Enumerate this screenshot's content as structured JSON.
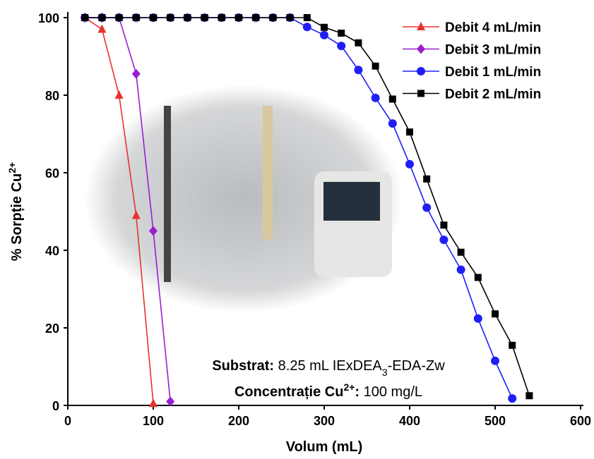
{
  "chart_data": {
    "type": "line",
    "x_label": "Volum (mL)",
    "y_label": [
      {
        "text": "% Sorpție Cu",
        "style": "bold"
      },
      {
        "text": "2+",
        "style": "sup"
      }
    ],
    "xlim": [
      0,
      600
    ],
    "xticks": [
      0,
      100,
      200,
      300,
      400,
      500,
      600
    ],
    "ylim": [
      0,
      100
    ],
    "yticks": [
      0,
      20,
      40,
      60,
      80,
      100
    ],
    "legend": "upper right",
    "series": [
      {
        "name": "Debit 4 mL/min",
        "color": "#e8322e",
        "marker": "triangle",
        "x": [
          20,
          40,
          60,
          80,
          100
        ],
        "values": [
          100,
          97,
          80,
          49,
          0.5
        ]
      },
      {
        "name": "Debit 3 mL/min",
        "color": "#9a1ed0",
        "marker": "diamond",
        "x": [
          20,
          40,
          60,
          80,
          100,
          120
        ],
        "values": [
          100,
          100,
          100,
          85.5,
          45,
          1
        ]
      },
      {
        "name": "Debit 1 mL/min",
        "color": "#1f1ff5",
        "marker": "circle",
        "x": [
          20,
          40,
          60,
          80,
          100,
          120,
          140,
          160,
          180,
          200,
          220,
          240,
          260,
          280,
          300,
          320,
          340,
          360,
          380,
          400,
          420,
          440,
          460,
          480,
          500,
          520
        ],
        "values": [
          100,
          100,
          100,
          100,
          100,
          100,
          100,
          100,
          100,
          100,
          100,
          100,
          100,
          97.6,
          95.5,
          92.7,
          86.5,
          79.3,
          72.7,
          62.2,
          51,
          42.7,
          35,
          22.4,
          11.5,
          1.8
        ]
      },
      {
        "name": "Debit 2 mL/min",
        "color": "#000000",
        "marker": "square",
        "x": [
          20,
          40,
          60,
          80,
          100,
          120,
          140,
          160,
          180,
          200,
          220,
          240,
          260,
          280,
          300,
          320,
          340,
          360,
          380,
          400,
          420,
          440,
          460,
          480,
          500,
          520,
          540
        ],
        "values": [
          100,
          100,
          100,
          100,
          100,
          100,
          100,
          100,
          100,
          100,
          100,
          100,
          100,
          100,
          97.5,
          96,
          93.5,
          87.5,
          79,
          70.5,
          58.4,
          46.5,
          39.5,
          33,
          23.6,
          15.5,
          2.5
        ]
      }
    ],
    "annotations": [
      [
        {
          "text": "Substrat:",
          "style": "bold"
        },
        {
          "text": " 8.25 mL IExDEA",
          "style": "normal"
        },
        {
          "text": "3",
          "style": "sub"
        },
        {
          "text": "-EDA-Zw",
          "style": "normal"
        }
      ],
      [
        {
          "text": "Concentrație Cu",
          "style": "bold"
        },
        {
          "text": "2+",
          "style": "sup"
        },
        {
          "text": ":",
          "style": "bold"
        },
        {
          "text": " 100 mg/L",
          "style": "normal"
        }
      ]
    ]
  }
}
